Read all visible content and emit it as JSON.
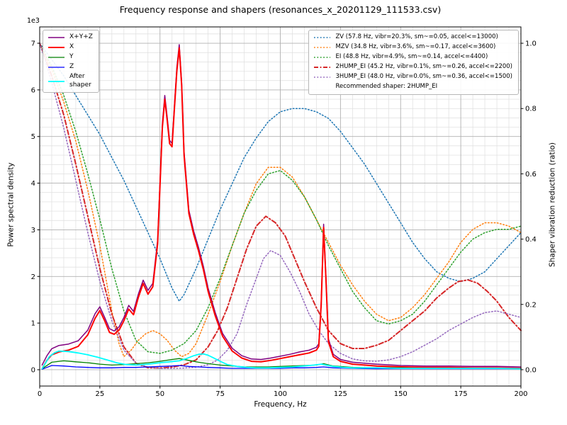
{
  "figure": {
    "title": "Frequency response and shapers (resonances_x_20201129_111533.csv)",
    "xlabel": "Frequency, Hz",
    "ylabel_left": "Power spectral density",
    "ylabel_right": "Shaper vibration reduction (ratio)",
    "y_offset_text": "1e3",
    "recommended_note": "Recommended shaper: 2HUMP_EI"
  },
  "chart_data": {
    "type": "line",
    "title": "Frequency response and shapers (resonances_x_20201129_111533.csv)",
    "xlabel": "Frequency, Hz",
    "ylabel_left": "Power spectral density",
    "ylabel_right": "Shaper vibration reduction (ratio)",
    "xlim": [
      0,
      200
    ],
    "xticks": [
      0,
      25,
      50,
      75,
      100,
      125,
      150,
      175,
      200
    ],
    "yticks_left": [
      0,
      1,
      2,
      3,
      4,
      5,
      6,
      7
    ],
    "yticks_right": [
      0.0,
      0.2,
      0.4,
      0.6,
      0.8,
      1.0
    ],
    "y_left_scale": "1e3",
    "grid": "major+minor",
    "legend_psd_position": "upper left",
    "legend_shaper_position": "upper right",
    "recommended_shaper": "2HUMP_EI",
    "psd_series": [
      {
        "name": "sum",
        "label": "X+Y+Z",
        "color": "purple",
        "style": "solid",
        "width": 1.5,
        "x": [
          1,
          3,
          5,
          8,
          12,
          16,
          20,
          23,
          25,
          27,
          29,
          31,
          33,
          35,
          37,
          39,
          41,
          43,
          45,
          47,
          49,
          51,
          52,
          53,
          54,
          55,
          56,
          57,
          58,
          59,
          60,
          62,
          64,
          66,
          68,
          70,
          73,
          76,
          80,
          84,
          88,
          92,
          96,
          100,
          104,
          108,
          112,
          115,
          116,
          117,
          118,
          119,
          120,
          122,
          125,
          130,
          140,
          150,
          160,
          170,
          180,
          190,
          200
        ],
        "y": [
          0.1,
          0.3,
          0.45,
          0.52,
          0.55,
          0.62,
          0.85,
          1.2,
          1.35,
          1.12,
          0.88,
          0.83,
          0.92,
          1.12,
          1.38,
          1.25,
          1.62,
          1.92,
          1.7,
          1.85,
          2.78,
          5.28,
          5.88,
          5.42,
          4.92,
          4.85,
          5.68,
          6.48,
          6.97,
          6.17,
          4.68,
          3.42,
          2.97,
          2.62,
          2.22,
          1.75,
          1.22,
          0.78,
          0.46,
          0.3,
          0.23,
          0.22,
          0.25,
          0.29,
          0.33,
          0.38,
          0.42,
          0.48,
          0.56,
          1.46,
          3.12,
          1.96,
          0.66,
          0.33,
          0.22,
          0.16,
          0.12,
          0.09,
          0.08,
          0.08,
          0.07,
          0.07,
          0.06
        ]
      },
      {
        "name": "x",
        "label": "X",
        "color": "red",
        "style": "solid",
        "width": 2,
        "x": [
          1,
          3,
          5,
          8,
          12,
          16,
          20,
          23,
          25,
          27,
          29,
          31,
          33,
          35,
          37,
          39,
          41,
          43,
          45,
          47,
          49,
          51,
          52,
          53,
          54,
          55,
          56,
          57,
          58,
          59,
          60,
          62,
          64,
          66,
          68,
          70,
          73,
          76,
          80,
          84,
          88,
          92,
          96,
          100,
          104,
          108,
          112,
          115,
          116,
          117,
          118,
          119,
          120,
          122,
          125,
          130,
          140,
          150,
          160,
          170,
          180,
          190,
          200
        ],
        "y": [
          0.02,
          0.2,
          0.32,
          0.38,
          0.42,
          0.5,
          0.75,
          1.1,
          1.27,
          1.05,
          0.8,
          0.76,
          0.85,
          1.05,
          1.3,
          1.18,
          1.55,
          1.85,
          1.62,
          1.78,
          2.7,
          5.2,
          5.8,
          5.35,
          4.85,
          4.78,
          5.6,
          6.4,
          6.9,
          6.1,
          4.6,
          3.35,
          2.9,
          2.55,
          2.15,
          1.68,
          1.15,
          0.72,
          0.4,
          0.25,
          0.18,
          0.17,
          0.2,
          0.24,
          0.28,
          0.32,
          0.36,
          0.42,
          0.5,
          1.4,
          3.05,
          1.9,
          0.6,
          0.28,
          0.18,
          0.12,
          0.08,
          0.06,
          0.05,
          0.05,
          0.04,
          0.04,
          0.03
        ]
      },
      {
        "name": "y",
        "label": "Y",
        "color": "green",
        "style": "solid",
        "width": 1.3,
        "x": [
          1,
          5,
          10,
          15,
          20,
          25,
          30,
          35,
          40,
          45,
          50,
          55,
          58,
          62,
          66,
          70,
          75,
          80,
          85,
          90,
          95,
          100,
          105,
          110,
          115,
          118,
          122,
          130,
          140,
          150,
          160,
          170,
          180,
          190,
          200
        ],
        "y": [
          0.02,
          0.16,
          0.19,
          0.17,
          0.15,
          0.12,
          0.1,
          0.11,
          0.13,
          0.15,
          0.18,
          0.22,
          0.24,
          0.2,
          0.16,
          0.13,
          0.1,
          0.08,
          0.06,
          0.06,
          0.06,
          0.07,
          0.08,
          0.09,
          0.1,
          0.13,
          0.08,
          0.05,
          0.04,
          0.04,
          0.03,
          0.03,
          0.03,
          0.03,
          0.02
        ]
      },
      {
        "name": "z",
        "label": "Z",
        "color": "blue",
        "style": "solid",
        "width": 1.3,
        "x": [
          1,
          5,
          10,
          15,
          20,
          25,
          30,
          35,
          40,
          45,
          50,
          55,
          58,
          62,
          66,
          70,
          75,
          80,
          85,
          90,
          95,
          100,
          105,
          110,
          115,
          118,
          122,
          130,
          140,
          150,
          160,
          170,
          180,
          190,
          200
        ],
        "y": [
          0.01,
          0.09,
          0.08,
          0.06,
          0.05,
          0.04,
          0.04,
          0.05,
          0.05,
          0.06,
          0.07,
          0.08,
          0.09,
          0.07,
          0.06,
          0.05,
          0.04,
          0.03,
          0.03,
          0.03,
          0.03,
          0.03,
          0.04,
          0.04,
          0.05,
          0.06,
          0.04,
          0.03,
          0.02,
          0.02,
          0.02,
          0.02,
          0.02,
          0.02,
          0.02
        ]
      },
      {
        "name": "after_shaper",
        "label": "After\nshaper",
        "color": "cyan",
        "style": "solid",
        "width": 1.8,
        "x": [
          1,
          4,
          6,
          8,
          12,
          16,
          20,
          24,
          28,
          32,
          36,
          40,
          45,
          50,
          54,
          58,
          61,
          64,
          66,
          68,
          70,
          72,
          75,
          78,
          82,
          86,
          90,
          95,
          100,
          105,
          110,
          114,
          117,
          119,
          122,
          126,
          130,
          140,
          150,
          160,
          170,
          180,
          190,
          200
        ],
        "y": [
          0.02,
          0.28,
          0.36,
          0.4,
          0.39,
          0.36,
          0.32,
          0.27,
          0.21,
          0.15,
          0.11,
          0.1,
          0.12,
          0.15,
          0.17,
          0.19,
          0.24,
          0.3,
          0.33,
          0.34,
          0.31,
          0.26,
          0.18,
          0.11,
          0.07,
          0.05,
          0.04,
          0.04,
          0.05,
          0.06,
          0.08,
          0.1,
          0.12,
          0.1,
          0.07,
          0.05,
          0.04,
          0.04,
          0.03,
          0.03,
          0.03,
          0.03,
          0.03,
          0.02
        ]
      }
    ],
    "shaper_series": [
      {
        "name": "ZV",
        "label": "ZV (57.8 Hz, vibr=20.3%, sm~=0.05, accel<=13000)",
        "color": "#1f77b4",
        "style": "dotted",
        "width": 1.5,
        "x": [
          0,
          5,
          10,
          15,
          20,
          25,
          30,
          35,
          40,
          45,
          50,
          55,
          58,
          60,
          65,
          70,
          75,
          80,
          85,
          90,
          95,
          100,
          105,
          110,
          115,
          120,
          125,
          130,
          135,
          140,
          145,
          150,
          155,
          160,
          165,
          170,
          175,
          180,
          185,
          190,
          195,
          200
        ],
        "y": [
          1.0,
          0.95,
          0.9,
          0.84,
          0.78,
          0.72,
          0.65,
          0.58,
          0.5,
          0.42,
          0.34,
          0.25,
          0.21,
          0.23,
          0.31,
          0.4,
          0.49,
          0.57,
          0.65,
          0.71,
          0.76,
          0.79,
          0.8,
          0.8,
          0.79,
          0.77,
          0.73,
          0.68,
          0.63,
          0.57,
          0.51,
          0.45,
          0.39,
          0.34,
          0.3,
          0.28,
          0.27,
          0.28,
          0.3,
          0.34,
          0.38,
          0.42
        ]
      },
      {
        "name": "MZV",
        "label": "MZV (34.8 Hz, vibr=3.6%, sm~=0.17, accel<=3600)",
        "color": "#ff7f0e",
        "style": "dotted",
        "width": 1.5,
        "x": [
          0,
          5,
          10,
          15,
          20,
          25,
          30,
          33,
          35,
          38,
          41,
          44,
          47,
          50,
          53,
          56,
          59,
          62,
          65,
          70,
          75,
          80,
          85,
          90,
          95,
          100,
          105,
          110,
          115,
          120,
          125,
          130,
          135,
          140,
          145,
          150,
          155,
          160,
          165,
          170,
          175,
          180,
          185,
          190,
          195,
          200
        ],
        "y": [
          1.0,
          0.92,
          0.82,
          0.7,
          0.55,
          0.38,
          0.18,
          0.08,
          0.04,
          0.06,
          0.09,
          0.11,
          0.12,
          0.11,
          0.09,
          0.06,
          0.04,
          0.05,
          0.08,
          0.17,
          0.27,
          0.38,
          0.48,
          0.57,
          0.62,
          0.62,
          0.59,
          0.53,
          0.46,
          0.39,
          0.32,
          0.26,
          0.21,
          0.17,
          0.15,
          0.16,
          0.19,
          0.23,
          0.28,
          0.33,
          0.39,
          0.43,
          0.45,
          0.45,
          0.44,
          0.42
        ]
      },
      {
        "name": "EI",
        "label": "EI (48.8 Hz, vibr=4.9%, sm~=0.14, accel<=4400)",
        "color": "#2ca02c",
        "style": "dotted",
        "width": 1.5,
        "x": [
          0,
          5,
          10,
          15,
          20,
          25,
          30,
          35,
          40,
          45,
          50,
          55,
          60,
          65,
          70,
          75,
          80,
          85,
          90,
          95,
          100,
          105,
          110,
          115,
          120,
          125,
          130,
          135,
          140,
          145,
          150,
          155,
          160,
          165,
          170,
          175,
          180,
          185,
          190,
          195,
          200
        ],
        "y": [
          1.0,
          0.93,
          0.84,
          0.73,
          0.6,
          0.46,
          0.31,
          0.18,
          0.09,
          0.055,
          0.05,
          0.06,
          0.08,
          0.12,
          0.19,
          0.28,
          0.38,
          0.48,
          0.55,
          0.6,
          0.61,
          0.58,
          0.53,
          0.46,
          0.38,
          0.31,
          0.24,
          0.19,
          0.15,
          0.14,
          0.15,
          0.17,
          0.21,
          0.26,
          0.31,
          0.36,
          0.4,
          0.42,
          0.43,
          0.43,
          0.44
        ]
      },
      {
        "name": "2HUMP_EI",
        "label": "2HUMP_EI (45.2 Hz, vibr=0.1%, sm~=0.26, accel<=2200)",
        "color": "#d62728",
        "style": "dashdot",
        "width": 2,
        "x": [
          0,
          5,
          10,
          15,
          20,
          25,
          30,
          35,
          40,
          45,
          50,
          55,
          60,
          65,
          70,
          74,
          78,
          82,
          86,
          90,
          94,
          98,
          102,
          106,
          110,
          115,
          120,
          125,
          130,
          135,
          140,
          145,
          150,
          155,
          160,
          165,
          170,
          174,
          178,
          182,
          186,
          190,
          195,
          200
        ],
        "y": [
          1.0,
          0.9,
          0.78,
          0.63,
          0.47,
          0.31,
          0.17,
          0.07,
          0.02,
          0.006,
          0.005,
          0.008,
          0.015,
          0.03,
          0.07,
          0.12,
          0.19,
          0.28,
          0.37,
          0.44,
          0.47,
          0.45,
          0.41,
          0.34,
          0.27,
          0.19,
          0.12,
          0.08,
          0.065,
          0.065,
          0.075,
          0.09,
          0.12,
          0.15,
          0.18,
          0.22,
          0.25,
          0.27,
          0.275,
          0.265,
          0.24,
          0.21,
          0.16,
          0.12
        ]
      },
      {
        "name": "3HUMP_EI",
        "label": "3HUMP_EI (48.0 Hz, vibr=0.0%, sm~=0.36, accel<=1500)",
        "color": "#9467bd",
        "style": "dotted",
        "width": 1.5,
        "x": [
          0,
          5,
          10,
          15,
          20,
          25,
          30,
          35,
          40,
          45,
          50,
          55,
          60,
          65,
          70,
          74,
          78,
          82,
          86,
          90,
          93,
          96,
          100,
          104,
          108,
          112,
          116,
          120,
          125,
          130,
          135,
          140,
          145,
          150,
          155,
          160,
          165,
          170,
          175,
          180,
          185,
          190,
          195,
          200
        ],
        "y": [
          1.0,
          0.88,
          0.74,
          0.58,
          0.42,
          0.27,
          0.15,
          0.06,
          0.02,
          0.008,
          0.004,
          0.004,
          0.005,
          0.008,
          0.015,
          0.03,
          0.06,
          0.11,
          0.2,
          0.28,
          0.34,
          0.365,
          0.35,
          0.3,
          0.24,
          0.17,
          0.12,
          0.08,
          0.05,
          0.033,
          0.027,
          0.026,
          0.03,
          0.04,
          0.055,
          0.075,
          0.095,
          0.12,
          0.14,
          0.16,
          0.175,
          0.18,
          0.17,
          0.16
        ]
      }
    ]
  }
}
